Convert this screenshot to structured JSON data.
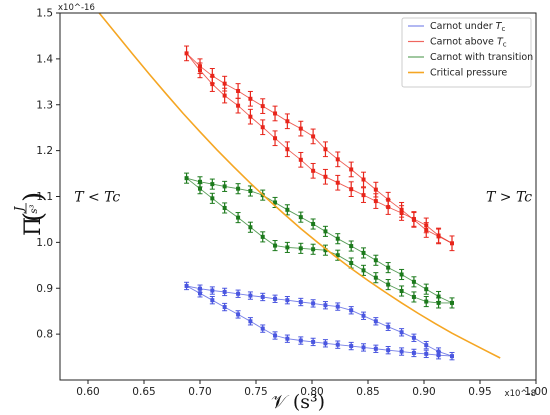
{
  "chart_data": {
    "type": "line",
    "xlim": [
      0.575,
      1.0
    ],
    "ylim": [
      0.7,
      1.5
    ],
    "x_multiplier": "x10^-8",
    "y_multiplier": "x10^-16",
    "xticks": [
      "0.60",
      "0.65",
      "0.70",
      "0.75",
      "0.80",
      "0.85",
      "0.90",
      "0.95",
      "1.00"
    ],
    "yticks": [
      "0.8",
      "0.9",
      "1.0",
      "1.1",
      "1.2",
      "1.3",
      "1.4",
      "1.5"
    ],
    "xlabel": "𝒱 (s³)",
    "ylabel_main": "Π",
    "ylabel_num": "J",
    "ylabel_den": "s³",
    "annotations": [
      {
        "text": "T < Tc",
        "x": 0.61,
        "y": 1.1
      },
      {
        "text": "T > Tc",
        "x": 0.975,
        "y": 1.1
      }
    ],
    "legend_position": "top-right",
    "grid": false,
    "series": [
      {
        "name": "Carnot under Tc",
        "color": "#4a56e0",
        "err": 0.008,
        "upper": [
          [
            0.688,
            0.905
          ],
          [
            0.7,
            0.899
          ],
          [
            0.711,
            0.895
          ],
          [
            0.722,
            0.892
          ],
          [
            0.734,
            0.888
          ],
          [
            0.745,
            0.884
          ],
          [
            0.756,
            0.881
          ],
          [
            0.767,
            0.877
          ],
          [
            0.778,
            0.874
          ],
          [
            0.79,
            0.87
          ],
          [
            0.801,
            0.867
          ],
          [
            0.812,
            0.863
          ],
          [
            0.823,
            0.86
          ],
          [
            0.835,
            0.852
          ],
          [
            0.846,
            0.84
          ],
          [
            0.857,
            0.828
          ],
          [
            0.868,
            0.816
          ],
          [
            0.88,
            0.804
          ],
          [
            0.891,
            0.792
          ],
          [
            0.902,
            0.776
          ],
          [
            0.913,
            0.762
          ],
          [
            0.925,
            0.752
          ]
        ],
        "lower": [
          [
            0.688,
            0.905
          ],
          [
            0.7,
            0.889
          ],
          [
            0.711,
            0.874
          ],
          [
            0.722,
            0.859
          ],
          [
            0.734,
            0.843
          ],
          [
            0.745,
            0.828
          ],
          [
            0.756,
            0.812
          ],
          [
            0.767,
            0.797
          ],
          [
            0.778,
            0.79
          ],
          [
            0.79,
            0.786
          ],
          [
            0.801,
            0.783
          ],
          [
            0.812,
            0.78
          ],
          [
            0.823,
            0.777
          ],
          [
            0.835,
            0.774
          ],
          [
            0.846,
            0.771
          ],
          [
            0.857,
            0.768
          ],
          [
            0.868,
            0.765
          ],
          [
            0.88,
            0.762
          ],
          [
            0.891,
            0.759
          ],
          [
            0.902,
            0.757
          ],
          [
            0.913,
            0.754
          ],
          [
            0.925,
            0.752
          ]
        ]
      },
      {
        "name": "Carnot above Tc",
        "color": "#e8251b",
        "err": 0.016,
        "upper": [
          [
            0.688,
            1.412
          ],
          [
            0.7,
            1.384
          ],
          [
            0.711,
            1.363
          ],
          [
            0.722,
            1.346
          ],
          [
            0.734,
            1.33
          ],
          [
            0.745,
            1.313
          ],
          [
            0.756,
            1.297
          ],
          [
            0.767,
            1.281
          ],
          [
            0.778,
            1.264
          ],
          [
            0.79,
            1.248
          ],
          [
            0.801,
            1.231
          ],
          [
            0.812,
            1.203
          ],
          [
            0.823,
            1.181
          ],
          [
            0.835,
            1.159
          ],
          [
            0.846,
            1.137
          ],
          [
            0.857,
            1.115
          ],
          [
            0.868,
            1.093
          ],
          [
            0.88,
            1.071
          ],
          [
            0.891,
            1.049
          ],
          [
            0.902,
            1.027
          ],
          [
            0.913,
            1.013
          ],
          [
            0.925,
            0.998
          ]
        ],
        "lower": [
          [
            0.688,
            1.412
          ],
          [
            0.7,
            1.375
          ],
          [
            0.711,
            1.345
          ],
          [
            0.722,
            1.32
          ],
          [
            0.734,
            1.298
          ],
          [
            0.745,
            1.274
          ],
          [
            0.756,
            1.251
          ],
          [
            0.767,
            1.227
          ],
          [
            0.778,
            1.203
          ],
          [
            0.79,
            1.18
          ],
          [
            0.801,
            1.156
          ],
          [
            0.812,
            1.143
          ],
          [
            0.823,
            1.13
          ],
          [
            0.835,
            1.116
          ],
          [
            0.846,
            1.103
          ],
          [
            0.857,
            1.09
          ],
          [
            0.868,
            1.077
          ],
          [
            0.88,
            1.064
          ],
          [
            0.891,
            1.051
          ],
          [
            0.902,
            1.037
          ],
          [
            0.913,
            1.015
          ],
          [
            0.925,
            0.998
          ]
        ]
      },
      {
        "name": "Carnot with transition",
        "color": "#1c7a1c",
        "err": 0.011,
        "upper": [
          [
            0.688,
            1.14
          ],
          [
            0.7,
            1.132
          ],
          [
            0.711,
            1.127
          ],
          [
            0.722,
            1.122
          ],
          [
            0.734,
            1.117
          ],
          [
            0.745,
            1.112
          ],
          [
            0.756,
            1.103
          ],
          [
            0.767,
            1.087
          ],
          [
            0.778,
            1.071
          ],
          [
            0.79,
            1.055
          ],
          [
            0.801,
            1.04
          ],
          [
            0.812,
            1.024
          ],
          [
            0.823,
            1.008
          ],
          [
            0.835,
            0.992
          ],
          [
            0.846,
            0.977
          ],
          [
            0.857,
            0.961
          ],
          [
            0.868,
            0.945
          ],
          [
            0.88,
            0.93
          ],
          [
            0.891,
            0.914
          ],
          [
            0.902,
            0.898
          ],
          [
            0.913,
            0.882
          ],
          [
            0.925,
            0.868
          ]
        ],
        "lower": [
          [
            0.688,
            1.14
          ],
          [
            0.7,
            1.117
          ],
          [
            0.711,
            1.096
          ],
          [
            0.722,
            1.075
          ],
          [
            0.734,
            1.054
          ],
          [
            0.745,
            1.033
          ],
          [
            0.756,
            1.012
          ],
          [
            0.767,
            0.993
          ],
          [
            0.778,
            0.989
          ],
          [
            0.79,
            0.987
          ],
          [
            0.801,
            0.985
          ],
          [
            0.812,
            0.983
          ],
          [
            0.823,
            0.972
          ],
          [
            0.835,
            0.955
          ],
          [
            0.846,
            0.939
          ],
          [
            0.857,
            0.923
          ],
          [
            0.868,
            0.908
          ],
          [
            0.88,
            0.894
          ],
          [
            0.891,
            0.881
          ],
          [
            0.902,
            0.871
          ],
          [
            0.913,
            0.868
          ],
          [
            0.925,
            0.868
          ]
        ]
      },
      {
        "name": "Critical pressure",
        "color": "#f5a623",
        "err": 0,
        "upper": [
          [
            0.61,
            1.5
          ],
          [
            0.625,
            1.455
          ],
          [
            0.64,
            1.41
          ],
          [
            0.655,
            1.366
          ],
          [
            0.67,
            1.323
          ],
          [
            0.685,
            1.281
          ],
          [
            0.7,
            1.241
          ],
          [
            0.715,
            1.202
          ],
          [
            0.73,
            1.165
          ],
          [
            0.745,
            1.129
          ],
          [
            0.76,
            1.095
          ],
          [
            0.775,
            1.062
          ],
          [
            0.79,
            1.03
          ],
          [
            0.805,
            1.0
          ],
          [
            0.82,
            0.971
          ],
          [
            0.835,
            0.943
          ],
          [
            0.85,
            0.917
          ],
          [
            0.865,
            0.892
          ],
          [
            0.88,
            0.868
          ],
          [
            0.895,
            0.845
          ],
          [
            0.91,
            0.823
          ],
          [
            0.925,
            0.802
          ],
          [
            0.94,
            0.783
          ],
          [
            0.955,
            0.764
          ],
          [
            0.968,
            0.748
          ]
        ],
        "lower": []
      }
    ]
  },
  "legend": {
    "items": [
      {
        "label": "Carnot under ",
        "sub_main": "T",
        "sub": "c",
        "color": "#4a56e0"
      },
      {
        "label": "Carnot above ",
        "sub_main": "T",
        "sub": "c",
        "color": "#e8251b"
      },
      {
        "label": "Carnot with transition",
        "sub_main": "",
        "sub": "",
        "color": "#1c7a1c"
      },
      {
        "label": "Critical pressure",
        "sub_main": "",
        "sub": "",
        "color": "#f5a623"
      }
    ]
  }
}
